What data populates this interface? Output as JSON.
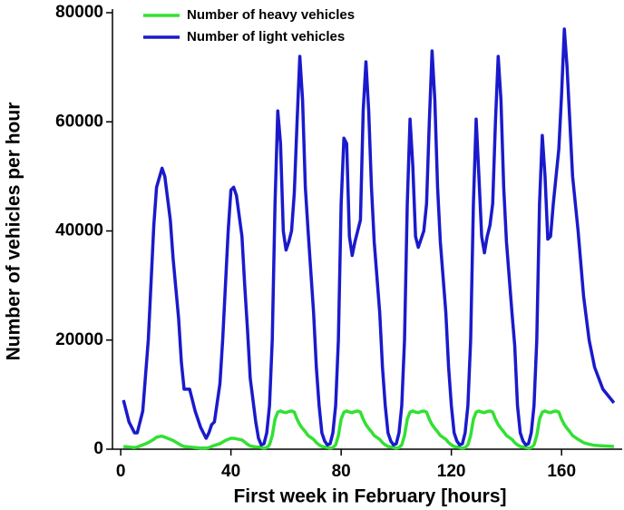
{
  "chart_data": {
    "type": "line",
    "xlabel": "First week in February [hours]",
    "ylabel": "Number of vehicles per hour",
    "x": [
      1,
      3,
      5,
      6,
      8,
      10,
      12,
      13,
      15,
      16,
      18,
      19,
      21,
      22,
      23,
      25,
      27,
      29,
      31,
      32,
      33,
      34,
      36,
      37,
      38,
      39,
      40,
      41,
      42,
      44,
      45,
      46,
      47,
      49,
      50,
      51,
      52,
      53,
      54,
      55,
      56,
      57,
      58,
      59,
      60,
      61,
      62,
      63,
      64,
      65,
      66,
      67,
      68,
      70,
      71,
      72,
      73,
      74,
      75,
      76,
      77,
      78,
      79,
      80,
      81,
      82,
      83,
      84,
      85,
      86,
      87,
      88,
      89,
      90,
      91,
      92,
      94,
      95,
      96,
      97,
      98,
      99,
      100,
      101,
      102,
      103,
      104,
      105,
      106,
      107,
      108,
      109,
      110,
      111,
      112,
      113,
      114,
      115,
      116,
      118,
      119,
      120,
      121,
      122,
      123,
      124,
      125,
      126,
      127,
      128,
      129,
      130,
      131,
      132,
      133,
      134,
      135,
      136,
      137,
      138,
      139,
      140,
      142,
      143,
      144,
      145,
      146,
      147,
      148,
      149,
      150,
      151,
      152,
      153,
      154,
      155,
      156,
      157,
      158,
      159,
      160,
      161,
      162,
      163,
      164,
      166,
      168,
      170,
      172,
      175,
      179
    ],
    "series": [
      {
        "name": "Number of heavy vehicles",
        "color": "#33e033",
        "values": [
          500,
          400,
          300,
          400,
          800,
          1200,
          1800,
          2200,
          2400,
          2200,
          1800,
          1600,
          1000,
          700,
          500,
          400,
          300,
          200,
          200,
          300,
          500,
          700,
          1000,
          1300,
          1600,
          1800,
          2000,
          2000,
          1900,
          1700,
          1300,
          900,
          600,
          400,
          400,
          300,
          200,
          300,
          800,
          2500,
          5500,
          6800,
          7000,
          6800,
          6700,
          6900,
          7000,
          6800,
          5500,
          4500,
          3800,
          3200,
          2500,
          1800,
          1200,
          800,
          500,
          400,
          300,
          200,
          300,
          800,
          2500,
          5500,
          6800,
          7000,
          6800,
          6700,
          6900,
          7000,
          6800,
          5500,
          4500,
          3800,
          3200,
          2500,
          1800,
          1200,
          800,
          500,
          400,
          300,
          200,
          300,
          800,
          2500,
          5500,
          6800,
          7000,
          6800,
          6700,
          6900,
          7000,
          6800,
          5500,
          4500,
          3800,
          3200,
          2500,
          1800,
          1200,
          800,
          500,
          400,
          300,
          200,
          300,
          800,
          2500,
          5500,
          6800,
          7000,
          6800,
          6700,
          6900,
          7000,
          6800,
          5500,
          4500,
          3800,
          3200,
          2500,
          1800,
          1200,
          800,
          500,
          400,
          300,
          200,
          300,
          800,
          2500,
          5500,
          6800,
          7000,
          6800,
          6700,
          6900,
          7000,
          6800,
          5500,
          4500,
          3800,
          3200,
          2500,
          1800,
          1200,
          900,
          700,
          600,
          500
        ]
      },
      {
        "name": "Number of light vehicles",
        "color": "#1a1acc",
        "values": [
          9000,
          5000,
          3000,
          3000,
          7000,
          20000,
          41000,
          48000,
          51500,
          50000,
          42000,
          35000,
          24000,
          16000,
          11000,
          11000,
          7000,
          4000,
          2000,
          3000,
          4500,
          5000,
          12000,
          20000,
          30000,
          40000,
          47500,
          48000,
          46500,
          39000,
          30000,
          22000,
          13000,
          5000,
          2000,
          800,
          1000,
          3000,
          8000,
          20000,
          45000,
          62000,
          56000,
          40000,
          36500,
          38000,
          40000,
          47000,
          60000,
          72000,
          64000,
          48000,
          40000,
          25000,
          15000,
          8000,
          3000,
          1500,
          800,
          1000,
          3000,
          8000,
          20000,
          45000,
          57000,
          56000,
          39000,
          35500,
          38000,
          40000,
          42000,
          62000,
          71000,
          62000,
          48000,
          38000,
          25000,
          15000,
          8000,
          3000,
          1500,
          800,
          1000,
          3000,
          8000,
          20000,
          45000,
          60500,
          52000,
          39000,
          37000,
          38500,
          40000,
          45000,
          60000,
          73000,
          64000,
          48000,
          38000,
          25000,
          15000,
          8000,
          3000,
          1500,
          800,
          1000,
          3000,
          8000,
          20000,
          45000,
          60500,
          50000,
          39000,
          36000,
          39000,
          41000,
          45000,
          60000,
          72000,
          64000,
          48000,
          38000,
          25000,
          19000,
          8000,
          3000,
          1500,
          800,
          1000,
          3000,
          8000,
          20000,
          45000,
          57500,
          50000,
          38500,
          39000,
          45000,
          50000,
          55000,
          65000,
          77000,
          70000,
          60000,
          50000,
          40000,
          28000,
          20000,
          15000,
          11000,
          8500
        ]
      }
    ],
    "xlim": [
      -3,
      182
    ],
    "xticks": [
      0,
      40,
      80,
      120,
      160
    ],
    "ylim": [
      0,
      80000
    ],
    "yticks": [
      0,
      20000,
      40000,
      60000,
      80000
    ],
    "grid": false,
    "legend": "upper left"
  }
}
